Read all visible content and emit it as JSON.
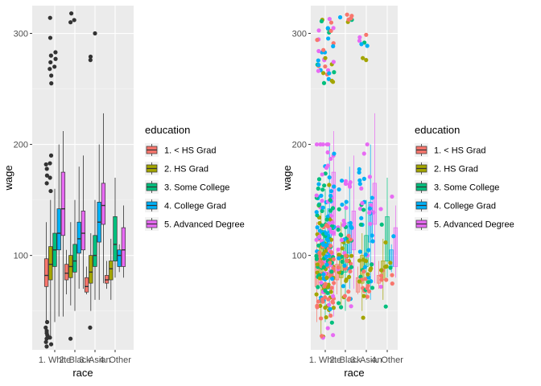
{
  "chart_data": [
    {
      "type": "box",
      "xlabel": "race",
      "ylabel": "wage",
      "ylim": [
        15,
        325
      ],
      "yticks": [
        100,
        200,
        300
      ],
      "categories": [
        "1. White",
        "2. Black",
        "3. Asian",
        "4. Other"
      ],
      "legend": {
        "title": "education",
        "placement": "right"
      },
      "series": [
        {
          "name": "1. < HS Grad",
          "color": "#F8766D",
          "boxes": [
            {
              "category": "1. White",
              "q1": 72,
              "median": 82,
              "q3": 97,
              "low": 40,
              "high": 130
            },
            {
              "category": "2. Black",
              "q1": 78,
              "median": 84,
              "q3": 92,
              "low": 65,
              "high": 105
            },
            {
              "category": "3. Asian",
              "q1": 67,
              "median": 72,
              "q3": 80,
              "low": 65,
              "high": 90
            },
            {
              "category": "4. Other",
              "q1": 75,
              "median": 78,
              "q3": 82,
              "low": 70,
              "high": 95
            }
          ]
        },
        {
          "name": "2. HS Grad",
          "color": "#A3A500",
          "boxes": [
            {
              "category": "1. White",
              "q1": 78,
              "median": 92,
              "q3": 108,
              "low": 25,
              "high": 150
            },
            {
              "category": "2. Black",
              "q1": 80,
              "median": 90,
              "q3": 100,
              "low": 55,
              "high": 130
            },
            {
              "category": "3. Asian",
              "q1": 75,
              "median": 85,
              "q3": 100,
              "low": 50,
              "high": 120
            },
            {
              "category": "4. Other",
              "q1": 78,
              "median": 88,
              "q3": 95,
              "low": 60,
              "high": 115
            }
          ]
        },
        {
          "name": "3. Some College",
          "color": "#00BF7D",
          "boxes": [
            {
              "category": "1. White",
              "q1": 90,
              "median": 105,
              "q3": 120,
              "low": 40,
              "high": 160
            },
            {
              "category": "2. Black",
              "q1": 85,
              "median": 95,
              "q3": 110,
              "low": 50,
              "high": 150
            },
            {
              "category": "3. Asian",
              "q1": 90,
              "median": 100,
              "q3": 118,
              "low": 60,
              "high": 150
            },
            {
              "category": "4. Other",
              "q1": 95,
              "median": 110,
              "q3": 135,
              "low": 80,
              "high": 170
            }
          ]
        },
        {
          "name": "4. College Grad",
          "color": "#00B0F6",
          "boxes": [
            {
              "category": "1. White",
              "q1": 105,
              "median": 120,
              "q3": 142,
              "low": 45,
              "high": 200
            },
            {
              "category": "2. Black",
              "q1": 102,
              "median": 115,
              "q3": 130,
              "low": 70,
              "high": 180
            },
            {
              "category": "3. Asian",
              "q1": 112,
              "median": 130,
              "q3": 148,
              "low": 60,
              "high": 200
            },
            {
              "category": "4. Other",
              "q1": 90,
              "median": 100,
              "q3": 105,
              "low": 85,
              "high": 110
            }
          ]
        },
        {
          "name": "5. Advanced Degree",
          "color": "#E76BF3",
          "boxes": [
            {
              "category": "1. White",
              "q1": 118,
              "median": 142,
              "q3": 175,
              "low": 45,
              "high": 212
            },
            {
              "category": "2. Black",
              "q1": 105,
              "median": 120,
              "q3": 140,
              "low": 70,
              "high": 190
            },
            {
              "category": "3. Asian",
              "q1": 128,
              "median": 145,
              "q3": 165,
              "low": 75,
              "high": 228
            },
            {
              "category": "4. Other",
              "q1": 90,
              "median": 105,
              "q3": 125,
              "low": 80,
              "high": 145
            }
          ]
        }
      ],
      "outliers": [
        {
          "category": "1. White",
          "series": "1. < HS Grad",
          "values": [
            18,
            22,
            25,
            28,
            30,
            32,
            35,
            40,
            165,
            172,
            178,
            182
          ]
        },
        {
          "category": "1. White",
          "series": "2. HS Grad",
          "values": [
            20,
            26,
            158,
            170,
            183,
            190,
            255,
            262,
            268,
            274,
            280,
            296,
            314
          ]
        },
        {
          "category": "1. White",
          "series": "3. Some College",
          "values": [
            270,
            277,
            283
          ]
        },
        {
          "category": "2. Black",
          "series": "2. HS Grad",
          "values": [
            25,
            310,
            318
          ]
        },
        {
          "category": "2. Black",
          "series": "3. Some College",
          "values": [
            312
          ]
        },
        {
          "category": "3. Asian",
          "series": "2. HS Grad",
          "values": [
            35,
            276,
            279
          ]
        },
        {
          "category": "3. Asian",
          "series": "3. Some College",
          "values": [
            300
          ]
        }
      ]
    },
    {
      "type": "box+jitter",
      "xlabel": "race",
      "ylabel": "wage",
      "ylim": [
        15,
        325
      ],
      "yticks": [
        100,
        200,
        300
      ],
      "categories": [
        "1. White",
        "2. Black",
        "3. Asian",
        "4. Other"
      ],
      "legend": {
        "title": "education",
        "placement": "right"
      },
      "series": [
        "1. < HS Grad",
        "2. HS Grad",
        "3. Some College",
        "4. College Grad",
        "5. Advanced Degree"
      ],
      "point_counts": {
        "1. White": 240,
        "2. Black": 70,
        "3. Asian": 60,
        "4. Other": 18
      },
      "high_clusters": [
        {
          "category": "1. White",
          "range": [
            255,
            315
          ]
        },
        {
          "category": "2. Black",
          "range": [
            310,
            318
          ]
        },
        {
          "category": "3. Asian",
          "range": [
            275,
            300
          ]
        }
      ]
    }
  ],
  "legend_items": [
    {
      "label": "1. < HS Grad",
      "color": "#F8766D"
    },
    {
      "label": "2. HS Grad",
      "color": "#A3A500"
    },
    {
      "label": "3. Some College",
      "color": "#00BF7D"
    },
    {
      "label": "4. College Grad",
      "color": "#00B0F6"
    },
    {
      "label": "5. Advanced Degree",
      "color": "#E76BF3"
    }
  ],
  "legend_title": "education",
  "category_labels": [
    "1. White",
    "2. Black",
    "3. Asian",
    "4. Other"
  ],
  "axis": {
    "x": "race",
    "y": "wage"
  },
  "panel_bg": "#EBEBEB",
  "outlier_color": "#333333"
}
